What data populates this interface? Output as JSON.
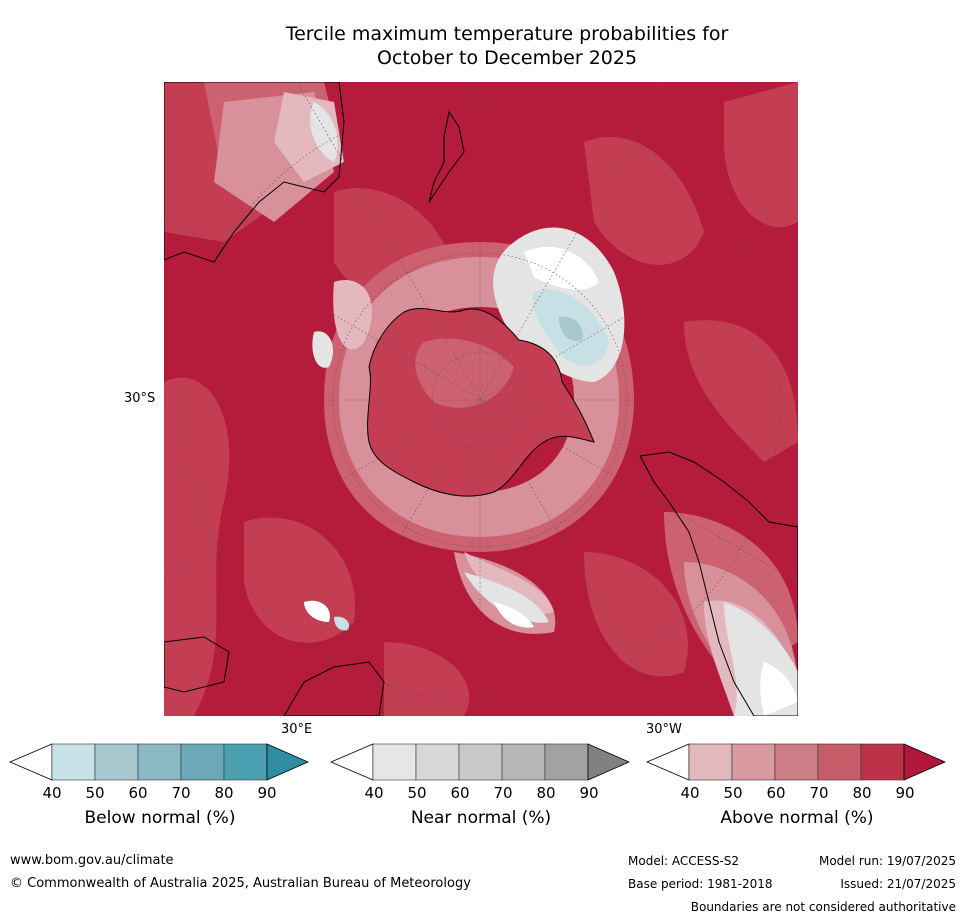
{
  "title_line1": "Tercile maximum temperature probabilities for",
  "title_line2": "October to December 2025",
  "map": {
    "lat_label": "30°S",
    "lon_label_east": "30°E",
    "lon_label_west": "30°W",
    "colors": {
      "above_90": "#b51b3a",
      "above_80": "#c33e53",
      "above_70": "#cc6270",
      "above_60": "#d8909a",
      "above_50": "#e4b8bf",
      "near_50": "#e4e4e4",
      "below_50": "#c7e0e6",
      "below_60": "#a8c8cf"
    }
  },
  "legends": [
    {
      "title": "Below normal (%)",
      "ticks": [
        "40",
        "50",
        "60",
        "70",
        "80",
        "90"
      ],
      "colors": [
        "#ffffff",
        "#c8e2e8",
        "#a8c8cf",
        "#8ab9c4",
        "#6ba9b8",
        "#4aa0b1",
        "#2e8ca3"
      ]
    },
    {
      "title": "Near normal (%)",
      "ticks": [
        "40",
        "50",
        "60",
        "70",
        "80",
        "90"
      ],
      "colors": [
        "#ffffff",
        "#e6e6e6",
        "#d8d8d8",
        "#c9c9c9",
        "#b6b6b6",
        "#a2a2a2",
        "#818181"
      ]
    },
    {
      "title": "Above normal (%)",
      "ticks": [
        "40",
        "50",
        "60",
        "70",
        "80",
        "90"
      ],
      "colors": [
        "#ffffff",
        "#e3b8bd",
        "#d99aa1",
        "#ce7c85",
        "#c65d69",
        "#bc3349",
        "#b0173a"
      ]
    }
  ],
  "footer": {
    "website": "www.bom.gov.au/climate",
    "copyright": "© Commonwealth of Australia 2025, Australian Bureau of Meteorology",
    "model": "Model: ACCESS-S2",
    "model_run": "Model run: 19/07/2025",
    "base_period": "Base period: 1981-2018",
    "issued": "Issued: 21/07/2025",
    "disclaimer": "Boundaries are not considered authoritative"
  }
}
